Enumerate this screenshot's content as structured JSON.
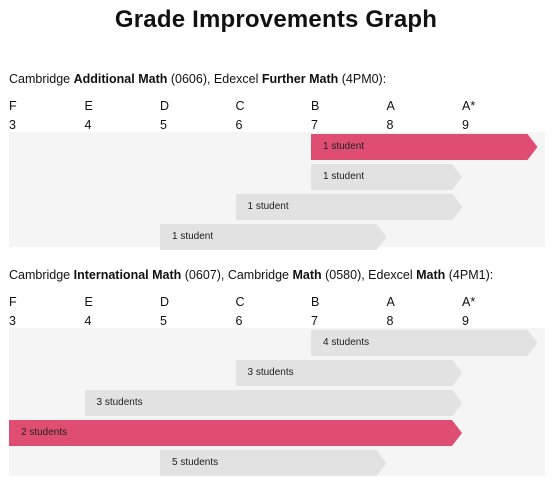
{
  "title": "Grade Improvements Graph",
  "colors": {
    "highlight": "#e04d72",
    "normal": "#e2e2e2",
    "background": "#f5f5f5"
  },
  "chart_data": [
    {
      "type": "bar",
      "subtype": "horizontal range arrows (start grade to end grade)",
      "title": "Cambridge Additional Math (0606), Edexcel Further Math (4PM0):",
      "heading_parts": [
        {
          "text": "Cambridge ",
          "bold": false
        },
        {
          "text": "Additional Math",
          "bold": true
        },
        {
          "text": " (0606), Edexcel ",
          "bold": false
        },
        {
          "text": "Further Math",
          "bold": true
        },
        {
          "text": " (4PM0):",
          "bold": false
        }
      ],
      "grade_letters": [
        "F",
        "E",
        "D",
        "C",
        "B",
        "A",
        "A*"
      ],
      "grade_numbers": [
        "3",
        "4",
        "5",
        "6",
        "7",
        "8",
        "9"
      ],
      "xlim": [
        3,
        10
      ],
      "series": [
        {
          "from": 7,
          "to": 10,
          "label": "1 student",
          "highlight": true
        },
        {
          "from": 7,
          "to": 9,
          "label": "1 student",
          "highlight": false
        },
        {
          "from": 6,
          "to": 9,
          "label": "1 student",
          "highlight": false
        },
        {
          "from": 5,
          "to": 8,
          "label": "1 student",
          "highlight": false
        }
      ]
    },
    {
      "type": "bar",
      "subtype": "horizontal range arrows (start grade to end grade)",
      "title": "Cambridge International Math (0607), Cambridge Math (0580), Edexcel Math (4PM1):",
      "heading_parts": [
        {
          "text": "Cambridge ",
          "bold": false
        },
        {
          "text": "International Math",
          "bold": true
        },
        {
          "text": " (0607), Cambridge ",
          "bold": false
        },
        {
          "text": "Math",
          "bold": true
        },
        {
          "text": " (0580), Edexcel ",
          "bold": false
        },
        {
          "text": "Math",
          "bold": true
        },
        {
          "text": " (4PM1):",
          "bold": false
        }
      ],
      "grade_letters": [
        "F",
        "E",
        "D",
        "C",
        "B",
        "A",
        "A*"
      ],
      "grade_numbers": [
        "3",
        "4",
        "5",
        "6",
        "7",
        "8",
        "9"
      ],
      "xlim": [
        3,
        10
      ],
      "series": [
        {
          "from": 7,
          "to": 10,
          "label": "4 students",
          "highlight": false
        },
        {
          "from": 6,
          "to": 9,
          "label": "3 students",
          "highlight": false
        },
        {
          "from": 4,
          "to": 9,
          "label": "3 students",
          "highlight": false
        },
        {
          "from": 3,
          "to": 9,
          "label": "2 students",
          "highlight": true
        },
        {
          "from": 5,
          "to": 8,
          "label": "5 students",
          "highlight": false
        }
      ]
    }
  ]
}
